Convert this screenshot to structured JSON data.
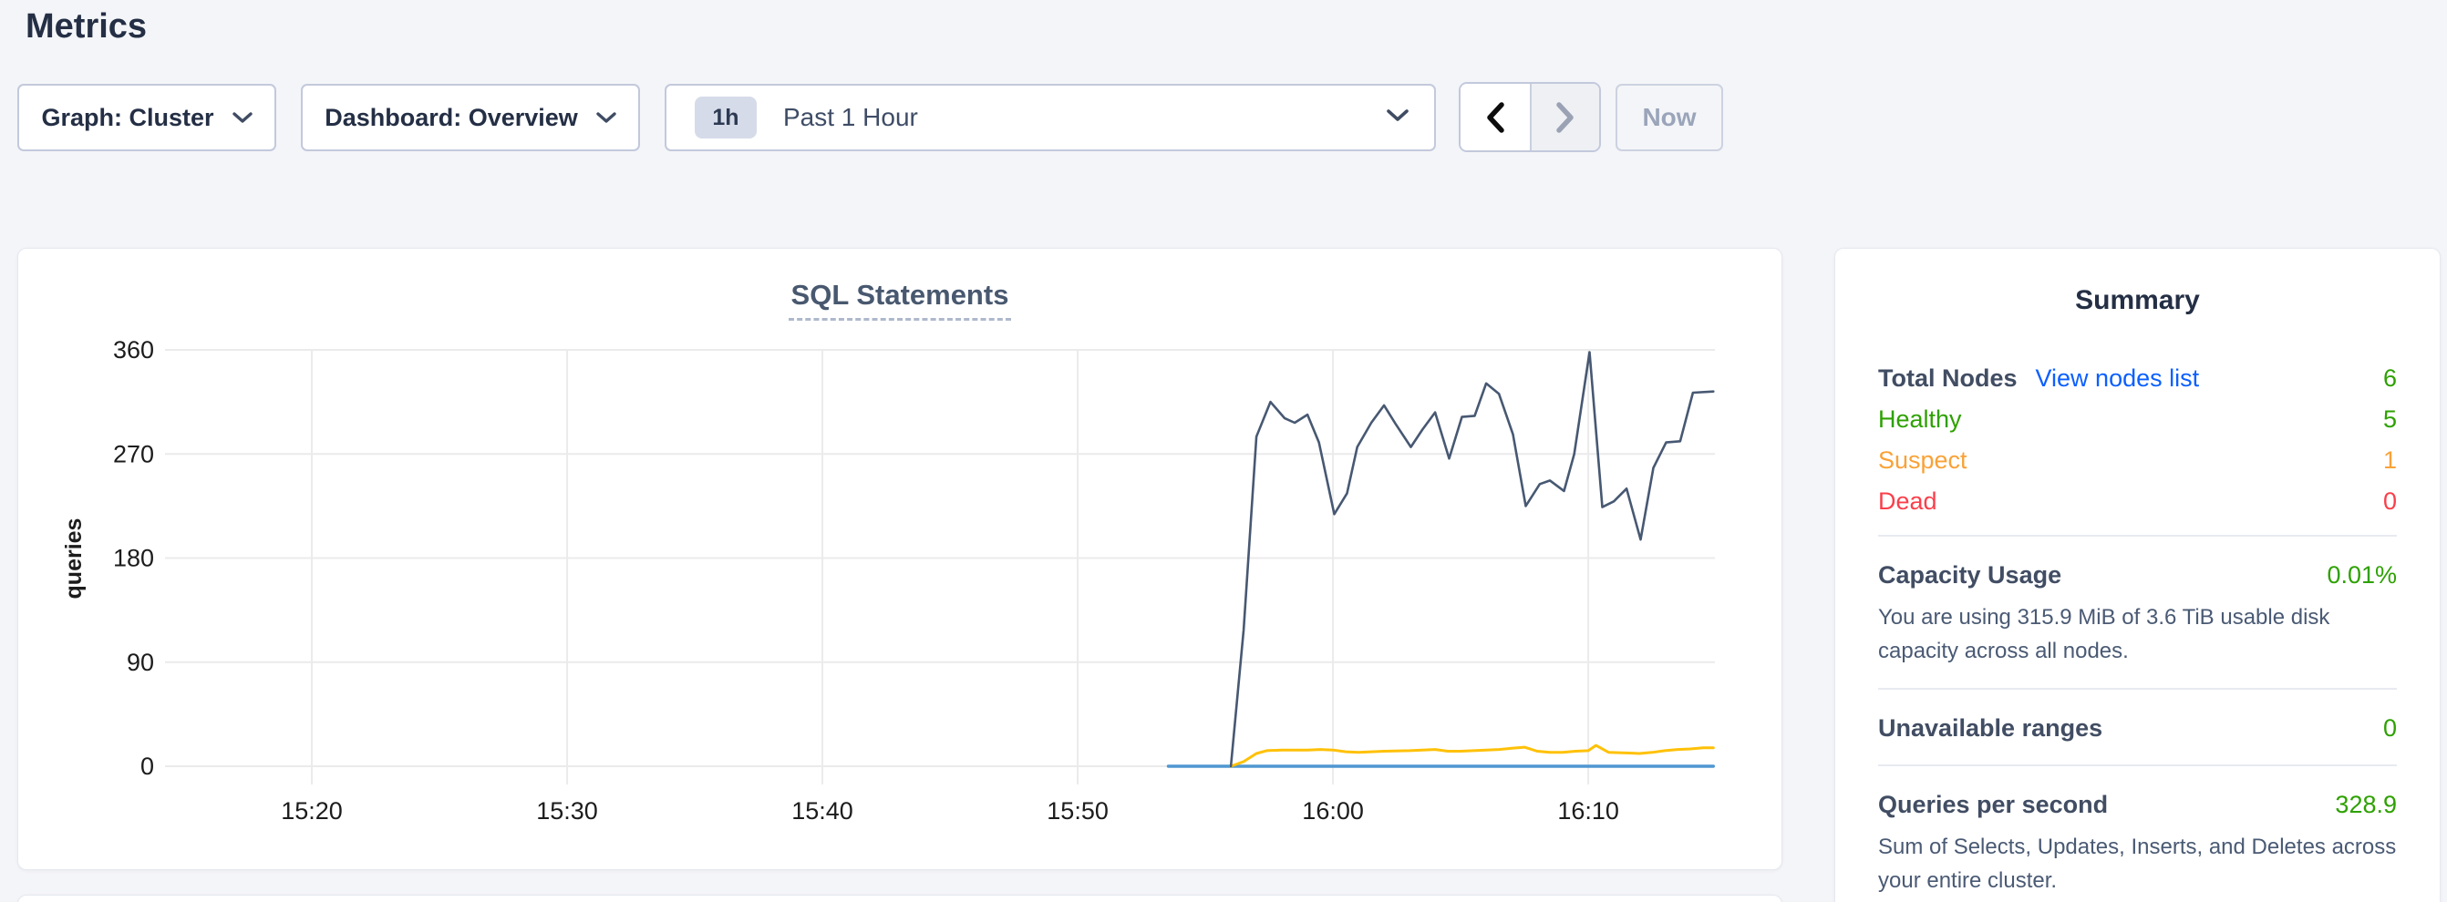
{
  "page": {
    "title": "Metrics"
  },
  "toolbar": {
    "graph_dropdown_label": "Graph: Cluster",
    "dashboard_dropdown_label": "Dashboard: Overview",
    "time_window_badge": "1h",
    "time_window_label": "Past 1 Hour",
    "now_button_label": "Now"
  },
  "chart_data": {
    "type": "line",
    "title": "SQL Statements",
    "xlabel": "",
    "ylabel": "queries",
    "legend": "none",
    "grid": true,
    "ylim": [
      0,
      360
    ],
    "yticks": [
      0,
      90,
      180,
      270,
      360
    ],
    "xlim": [
      14.25,
      74.96
    ],
    "x_unit": "minutes after 15:00",
    "xticks": [
      {
        "t": 20,
        "label": "15:20"
      },
      {
        "t": 30,
        "label": "15:30"
      },
      {
        "t": 40,
        "label": "15:40"
      },
      {
        "t": 50,
        "label": "15:50"
      },
      {
        "t": 60,
        "label": "16:00"
      },
      {
        "t": 70,
        "label": "16:10"
      }
    ],
    "series": [
      {
        "name": "flat-blue",
        "color": "#4f97d1",
        "width": 3.4,
        "points": [
          [
            53.55,
            0
          ],
          [
            74.9,
            0
          ]
        ]
      },
      {
        "name": "yellow",
        "color": "#ffc107",
        "width": 3,
        "points": [
          [
            56.0,
            0
          ],
          [
            56.5,
            4
          ],
          [
            57.0,
            11
          ],
          [
            57.4,
            13.5
          ],
          [
            58.0,
            14
          ],
          [
            59.0,
            14
          ],
          [
            59.5,
            14.5
          ],
          [
            60.0,
            14
          ],
          [
            60.5,
            12.5
          ],
          [
            61.0,
            12
          ],
          [
            61.5,
            12.5
          ],
          [
            62.0,
            13
          ],
          [
            63.0,
            13.5
          ],
          [
            64.0,
            14.5
          ],
          [
            64.5,
            13
          ],
          [
            65.0,
            13
          ],
          [
            66.0,
            14
          ],
          [
            66.5,
            14.5
          ],
          [
            67.0,
            15.5
          ],
          [
            67.5,
            16.5
          ],
          [
            68.0,
            13
          ],
          [
            68.5,
            12
          ],
          [
            69.0,
            12
          ],
          [
            69.5,
            13
          ],
          [
            70.0,
            13.5
          ],
          [
            70.3,
            18
          ],
          [
            70.8,
            12
          ],
          [
            71.5,
            11.5
          ],
          [
            72.0,
            11
          ],
          [
            72.5,
            12
          ],
          [
            73.0,
            13.5
          ],
          [
            73.5,
            14.5
          ],
          [
            74.0,
            15
          ],
          [
            74.5,
            16
          ],
          [
            74.9,
            16
          ]
        ]
      },
      {
        "name": "dark-slate",
        "color": "#475872",
        "width": 2.6,
        "points": [
          [
            56.0,
            0
          ],
          [
            56.5,
            118
          ],
          [
            57.0,
            285
          ],
          [
            57.55,
            315
          ],
          [
            58.1,
            301
          ],
          [
            58.5,
            297
          ],
          [
            59.0,
            304
          ],
          [
            59.45,
            280
          ],
          [
            60.05,
            218
          ],
          [
            60.55,
            236
          ],
          [
            60.95,
            276
          ],
          [
            61.5,
            297
          ],
          [
            62.0,
            312
          ],
          [
            62.45,
            296
          ],
          [
            63.05,
            276
          ],
          [
            63.5,
            291
          ],
          [
            64.0,
            306
          ],
          [
            64.55,
            266
          ],
          [
            65.05,
            302
          ],
          [
            65.55,
            303
          ],
          [
            66.0,
            331
          ],
          [
            66.5,
            322
          ],
          [
            67.05,
            287
          ],
          [
            67.55,
            225
          ],
          [
            68.1,
            244
          ],
          [
            68.5,
            247
          ],
          [
            69.05,
            238
          ],
          [
            69.45,
            270
          ],
          [
            70.05,
            358
          ],
          [
            70.55,
            224
          ],
          [
            71.0,
            229
          ],
          [
            71.5,
            240
          ],
          [
            72.05,
            196
          ],
          [
            72.55,
            258
          ],
          [
            73.05,
            280
          ],
          [
            73.6,
            281
          ],
          [
            74.1,
            323
          ],
          [
            74.9,
            324
          ]
        ]
      }
    ]
  },
  "summary": {
    "title": "Summary",
    "nodes": {
      "total_label": "Total Nodes",
      "view_link": "View nodes list",
      "total_value": "6",
      "rows": [
        {
          "label": "Healthy",
          "value": "5",
          "color": "#2ea102"
        },
        {
          "label": "Suspect",
          "value": "1",
          "color": "#f9a237"
        },
        {
          "label": "Dead",
          "value": "0",
          "color": "#fa3f4b"
        }
      ]
    },
    "capacity": {
      "label": "Capacity Usage",
      "value": "0.01%",
      "desc": "You are using 315.9 MiB of 3.6 TiB usable disk capacity across all nodes."
    },
    "unavailable": {
      "label": "Unavailable ranges",
      "value": "0"
    },
    "qps": {
      "label": "Queries per second",
      "value": "328.9",
      "desc": "Sum of Selects, Updates, Inserts, and Deletes across your entire cluster."
    },
    "colors": {
      "link_blue": "#0b5fff",
      "healthy_green": "#2ea102",
      "suspect_orange": "#f9a237",
      "dead_red": "#fa3f4b"
    }
  }
}
